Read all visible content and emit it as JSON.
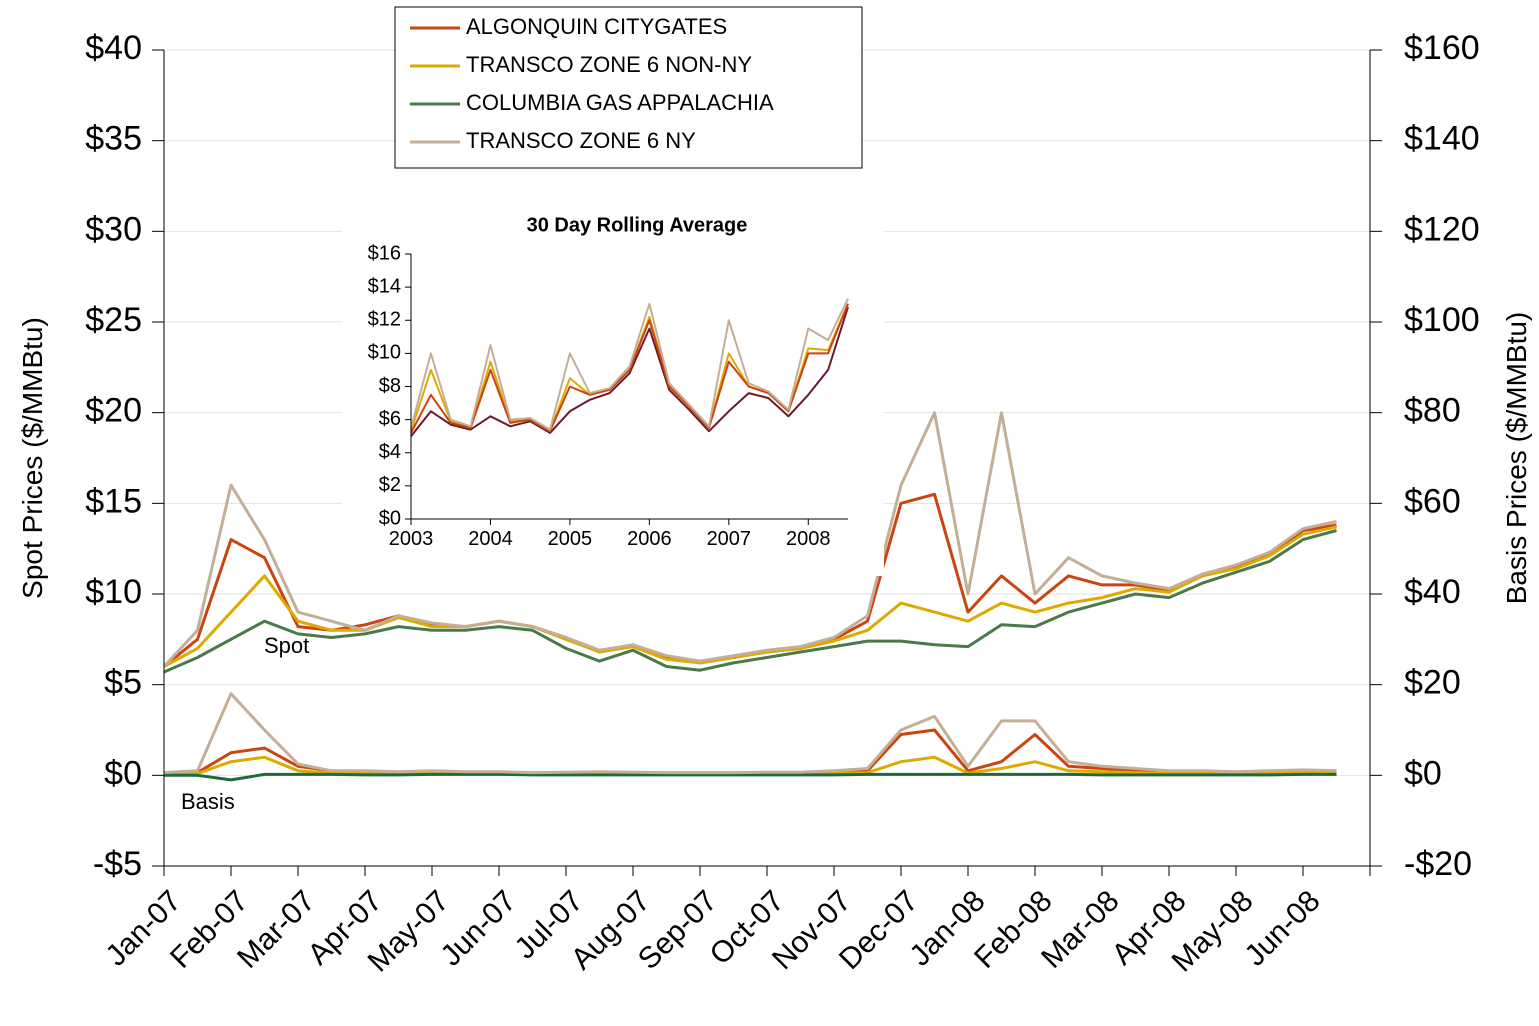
{
  "chart_data": [
    {
      "type": "line",
      "y_label": "Spot Prices ($/MMBtu)",
      "y2_label": "Basis Prices ($/MMBtu)",
      "annotations": [
        "Spot",
        "Basis"
      ],
      "categories": [
        "Jan-07",
        null,
        "Feb-07",
        null,
        "Mar-07",
        null,
        "Apr-07",
        null,
        "May-07",
        null,
        "Jun-07",
        null,
        "Jul-07",
        null,
        "Aug-07",
        null,
        "Sep-07",
        null,
        "Oct-07",
        null,
        "Nov-07",
        null,
        "Dec-07",
        null,
        "Jan-08",
        null,
        "Feb-08",
        null,
        "Mar-08",
        null,
        "Apr-08",
        null,
        "May-08",
        null,
        "Jun-08",
        null
      ],
      "ylim": [
        -5,
        40
      ],
      "yticks": [
        {
          "value": -5,
          "label": "-$5"
        },
        {
          "value": 0,
          "label": "$0"
        },
        {
          "value": 5,
          "label": "$5"
        },
        {
          "value": 10,
          "label": "$10"
        },
        {
          "value": 15,
          "label": "$15"
        },
        {
          "value": 20,
          "label": "$20"
        },
        {
          "value": 25,
          "label": "$25"
        },
        {
          "value": 30,
          "label": "$30"
        },
        {
          "value": 35,
          "label": "$35"
        },
        {
          "value": 40,
          "label": "$40"
        }
      ],
      "y2lim": [
        -20,
        160
      ],
      "y2ticks": [
        {
          "value": -20,
          "label": "-$20"
        },
        {
          "value": 0,
          "label": "$0"
        },
        {
          "value": 20,
          "label": "$20"
        },
        {
          "value": 40,
          "label": "$40"
        },
        {
          "value": 60,
          "label": "$60"
        },
        {
          "value": 80,
          "label": "$80"
        },
        {
          "value": 100,
          "label": "$100"
        },
        {
          "value": 120,
          "label": "$120"
        },
        {
          "value": 140,
          "label": "$140"
        },
        {
          "value": 160,
          "label": "$160"
        }
      ],
      "grid": true,
      "series": [
        {
          "name": "ALGONQUIN CITYGATES",
          "color": "#cc4411",
          "values": [
            6,
            7.5,
            13,
            12,
            8.2,
            8,
            8.3,
            8.8,
            8.3,
            8.2,
            8.5,
            8.2,
            7.6,
            6.8,
            7.2,
            6.5,
            6.2,
            6.5,
            6.8,
            7,
            7.5,
            8.5,
            15,
            15.5,
            9,
            11,
            9.5,
            11,
            10.5,
            10.5,
            10.2,
            11,
            11.5,
            12.2,
            13.5,
            13.8
          ]
        },
        {
          "name": "TRANSCO ZONE 6 NON-NY",
          "color": "#ddaa00",
          "values": [
            6,
            7,
            9,
            11,
            8.5,
            8,
            8,
            8.7,
            8.2,
            8.2,
            8.5,
            8.2,
            7.5,
            6.8,
            7.1,
            6.4,
            6.2,
            6.5,
            6.8,
            7,
            7.4,
            8,
            9.5,
            9,
            8.5,
            9.5,
            9,
            9.5,
            9.8,
            10.3,
            10.1,
            11,
            11.4,
            12.1,
            13.3,
            13.7
          ]
        },
        {
          "name": "COLUMBIA GAS APPALACHIA",
          "color": "#4a7a4a",
          "values": [
            5.7,
            6.5,
            7.5,
            8.5,
            7.8,
            7.6,
            7.8,
            8.2,
            8,
            8,
            8.2,
            8,
            7,
            6.3,
            6.9,
            6,
            5.8,
            6.2,
            6.5,
            6.8,
            7.1,
            7.4,
            7.4,
            7.2,
            7.1,
            8.3,
            8.2,
            9,
            9.5,
            10,
            9.8,
            10.6,
            11.2,
            11.8,
            13,
            13.5
          ]
        },
        {
          "name": "TRANSCO ZONE 6 NY",
          "color": "#c4ae96",
          "values": [
            6,
            8,
            16,
            13,
            9,
            8.5,
            8,
            8.8,
            8.4,
            8.2,
            8.5,
            8.2,
            7.6,
            6.9,
            7.2,
            6.6,
            6.3,
            6.6,
            6.9,
            7.1,
            7.6,
            8.8,
            16,
            20,
            10,
            20,
            10,
            12,
            11,
            10.6,
            10.3,
            11.1,
            11.6,
            12.3,
            13.6,
            14
          ]
        },
        {
          "axis": "y2",
          "color": "#cc4411",
          "values": [
            0.5,
            0.6,
            5,
            6,
            2,
            1,
            0.8,
            0.6,
            0.8,
            0.7,
            0.6,
            0.5,
            0.6,
            0.7,
            0.6,
            0.5,
            0.5,
            0.5,
            0.6,
            0.6,
            0.8,
            1,
            9,
            10,
            1,
            3,
            9,
            2,
            1.5,
            1,
            0.8,
            0.8,
            0.7,
            0.8,
            0.9,
            0.8
          ]
        },
        {
          "axis": "y2",
          "color": "#ddaa00",
          "values": [
            0.3,
            0.4,
            3,
            4,
            1,
            0.5,
            0.5,
            0.4,
            0.5,
            0.5,
            0.4,
            0.4,
            0.4,
            0.4,
            0.4,
            0.3,
            0.3,
            0.3,
            0.4,
            0.4,
            0.5,
            0.6,
            3,
            4,
            0.5,
            1.5,
            3,
            1,
            0.8,
            0.6,
            0.5,
            0.6,
            0.5,
            0.6,
            0.7,
            0.6
          ]
        },
        {
          "axis": "y2",
          "color": "#1e6b3a",
          "values": [
            0,
            0,
            -1,
            0.2,
            0.2,
            0.2,
            0.1,
            0.1,
            0.2,
            0.2,
            0.2,
            0.1,
            0.1,
            0.1,
            0.1,
            0.1,
            0.1,
            0.1,
            0.1,
            0.1,
            0.1,
            0.2,
            0.2,
            0.2,
            0.2,
            0.2,
            0.2,
            0.2,
            0.1,
            0.1,
            0.1,
            0.1,
            0.1,
            0.1,
            0.2,
            0.2
          ]
        },
        {
          "axis": "y2",
          "color": "#c4ae96",
          "values": [
            0.6,
            1,
            18,
            10,
            2.5,
            1,
            1,
            0.8,
            1,
            0.8,
            0.8,
            0.6,
            0.7,
            0.8,
            0.7,
            0.6,
            0.6,
            0.6,
            0.7,
            0.7,
            1,
            1.5,
            10,
            13,
            2,
            12,
            12,
            3,
            2,
            1.5,
            1,
            1,
            0.8,
            1,
            1.2,
            1
          ]
        }
      ]
    },
    {
      "type": "line",
      "title": "30 Day Rolling Average",
      "x": [
        2003,
        2003.25,
        2003.5,
        2003.75,
        2004,
        2004.25,
        2004.5,
        2004.75,
        2005,
        2005.25,
        2005.5,
        2005.75,
        2006,
        2006.25,
        2006.5,
        2006.75,
        2007,
        2007.25,
        2007.5,
        2007.75,
        2008,
        2008.25,
        2008.5
      ],
      "xlim": [
        2003,
        2008.5
      ],
      "xticks": [
        2003,
        2004,
        2005,
        2006,
        2007,
        2008
      ],
      "ylim": [
        0,
        16
      ],
      "yticks": [
        {
          "value": 0,
          "label": "$0"
        },
        {
          "value": 2,
          "label": "$2"
        },
        {
          "value": 4,
          "label": "$4"
        },
        {
          "value": 6,
          "label": "$6"
        },
        {
          "value": 8,
          "label": "$8"
        },
        {
          "value": 10,
          "label": "$10"
        },
        {
          "value": 12,
          "label": "$12"
        },
        {
          "value": 14,
          "label": "$14"
        },
        {
          "value": 16,
          "label": "$16"
        }
      ],
      "grid": false,
      "series": [
        {
          "color": "#6b1a2a",
          "values": [
            5,
            6.5,
            5.7,
            5.4,
            6.2,
            5.6,
            5.9,
            5.2,
            6.5,
            7.2,
            7.6,
            8.8,
            11.5,
            7.8,
            6.6,
            5.3,
            6.5,
            7.6,
            7.3,
            6.2,
            7.5,
            9,
            12.8
          ]
        },
        {
          "color": "#ddaa00",
          "values": [
            5.3,
            9,
            5.9,
            5.5,
            9.5,
            5.9,
            6,
            5.3,
            8.5,
            7.5,
            7.8,
            9,
            12.2,
            8,
            6.8,
            5.5,
            10,
            8,
            7.6,
            6.5,
            10.3,
            10.2,
            13
          ]
        },
        {
          "color": "#cc4411",
          "values": [
            5.2,
            7.5,
            5.8,
            5.5,
            9,
            5.8,
            6,
            5.3,
            8,
            7.5,
            7.8,
            9,
            12,
            8,
            6.8,
            5.5,
            9.5,
            8,
            7.6,
            6.5,
            10,
            10,
            13
          ]
        },
        {
          "color": "#c4ae96",
          "values": [
            5.5,
            10,
            6,
            5.6,
            10.5,
            6,
            6.1,
            5.4,
            10,
            7.6,
            7.9,
            9.2,
            13,
            8.2,
            6.9,
            5.6,
            12,
            8.2,
            7.7,
            6.6,
            11.5,
            10.8,
            13.3
          ]
        }
      ]
    }
  ]
}
